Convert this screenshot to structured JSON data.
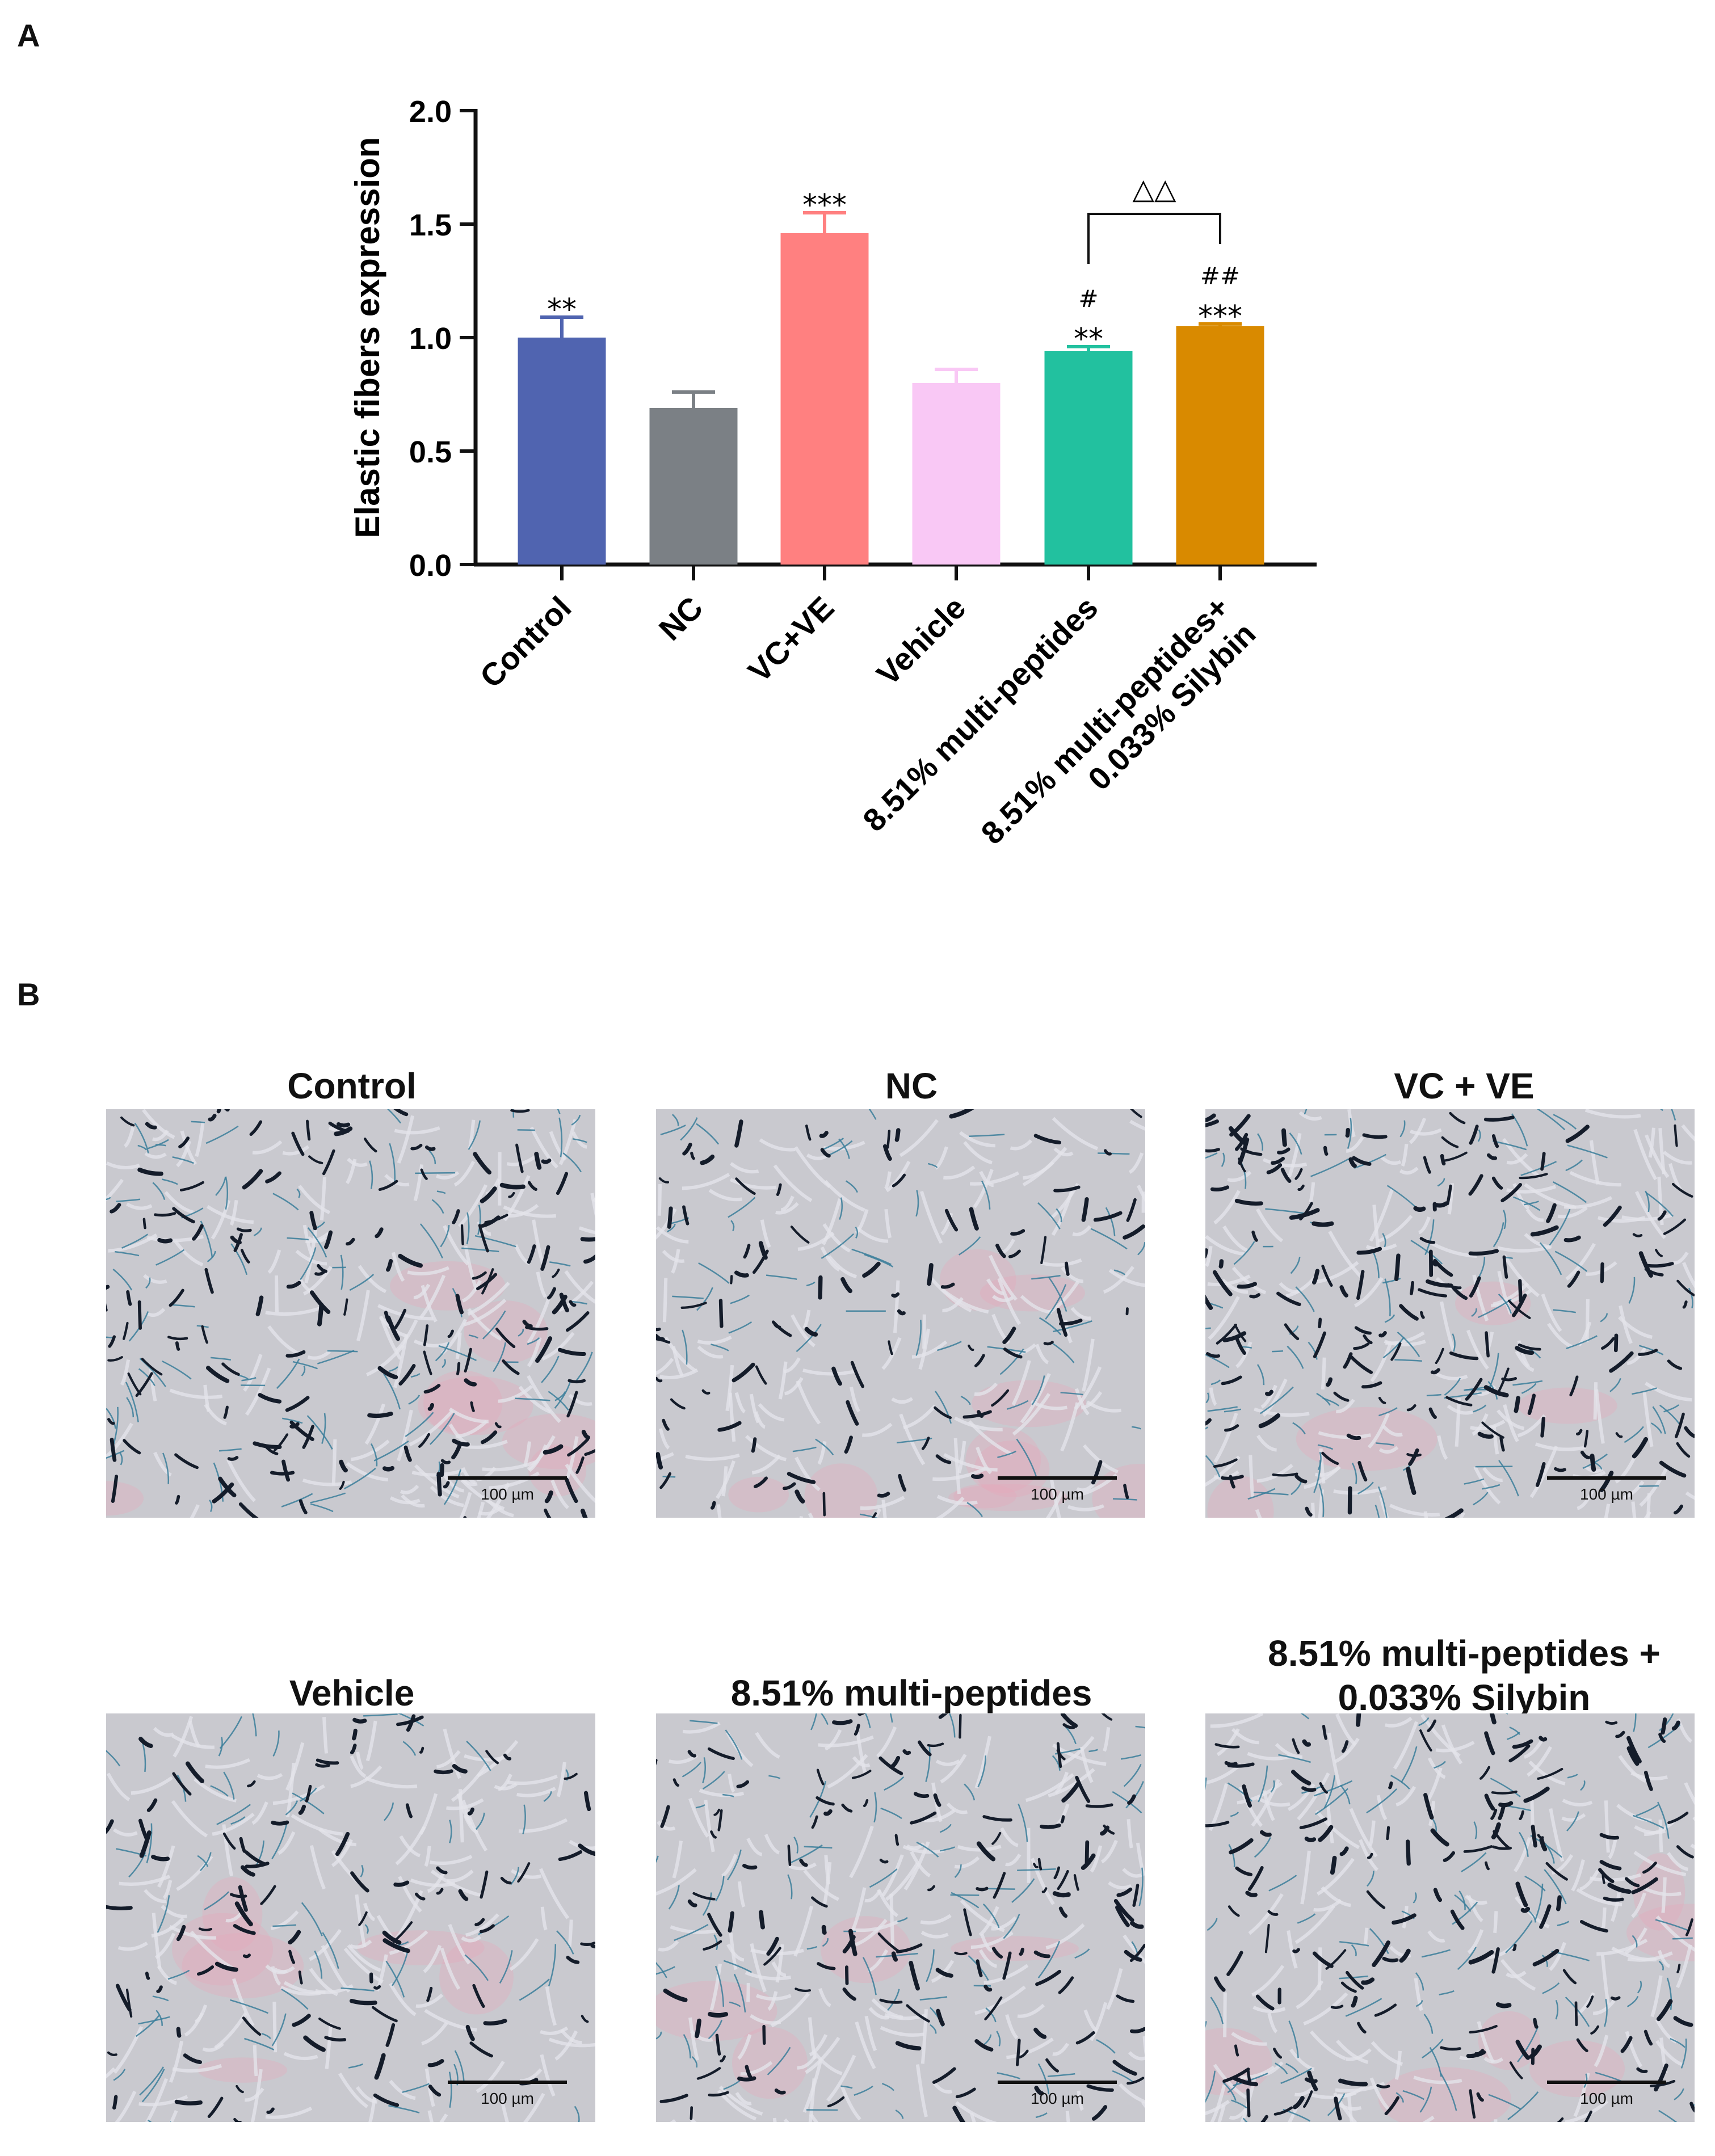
{
  "panel_a": {
    "label": "A"
  },
  "panel_b": {
    "label": "B"
  },
  "chart_data": {
    "type": "bar",
    "ylabel": "Elastic fibers expression",
    "ylim": [
      0,
      2.0
    ],
    "yticks": [
      "0.0",
      "0.5",
      "1.0",
      "1.5",
      "2.0"
    ],
    "grid": false,
    "categories": [
      "Control",
      "NC",
      "VC+VE",
      "Vehicle",
      "8.51% multi-peptides",
      "8.51% multi-peptides+\n0.033% Silybin"
    ],
    "values": [
      1.0,
      0.69,
      1.46,
      0.8,
      0.94,
      1.05
    ],
    "errors": [
      0.09,
      0.07,
      0.09,
      0.06,
      0.02,
      0.01
    ],
    "colors": [
      "#5064b0",
      "#7b8085",
      "#ff8080",
      "#f9c8f5",
      "#22c19f",
      "#d98a00"
    ],
    "annotations": [
      [
        "**"
      ],
      [],
      [
        "***"
      ],
      [],
      [
        "#",
        "**"
      ],
      [
        "##",
        "***"
      ]
    ],
    "comparison": {
      "from": 4,
      "to": 5,
      "label": "△△"
    }
  },
  "micrographs": [
    {
      "title": "Control",
      "scale": "100 µm",
      "density": 0.95,
      "pink": 0.5
    },
    {
      "title": "NC",
      "scale": "100 µm",
      "density": 0.55,
      "pink": 0.7
    },
    {
      "title": "VC + VE",
      "scale": "100 µm",
      "density": 1.0,
      "pink": 0.3
    },
    {
      "title": "Vehicle",
      "scale": "100 µm",
      "density": 0.6,
      "pink": 0.4
    },
    {
      "title": "8.51% multi-peptides",
      "scale": "100 µm",
      "density": 0.8,
      "pink": 0.3
    },
    {
      "title": "8.51% multi-peptides +\n0.033% Silybin",
      "scale": "100 µm",
      "density": 0.9,
      "pink": 0.4
    }
  ]
}
